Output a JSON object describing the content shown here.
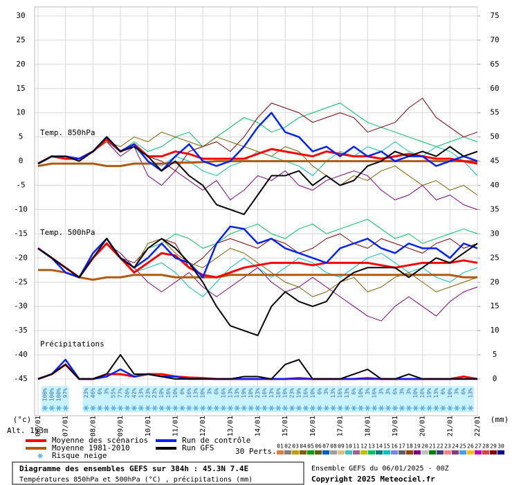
{
  "chart_data": {
    "type": "ensemble",
    "title": "Diagramme des ensembles GEFS sur 384h : 45.3N 7.4E",
    "subtitle": "Températures 850hPa et 500hPa (°C) , précipitations (mm)",
    "run_label": "Ensemble GEFS du 06/01/2025 - 00Z",
    "copyright": "Copyright 2025 Meteociel.fr",
    "altitude": "Alt. 153m",
    "y_unit": "(°c)",
    "y2_unit": "(mm)",
    "x": [
      0,
      12,
      24,
      36,
      48,
      60,
      72,
      84,
      96,
      108,
      120,
      132,
      144,
      156,
      168,
      180,
      192,
      204,
      216,
      228,
      240,
      252,
      264,
      276,
      288,
      300,
      312,
      324,
      336,
      348,
      360,
      372,
      384
    ],
    "xlim": [
      0,
      384
    ],
    "xticks": [
      {
        "value": 0,
        "label": "06/01"
      },
      {
        "value": 24,
        "label": "07/01"
      },
      {
        "value": 48,
        "label": "08/01"
      },
      {
        "value": 72,
        "label": "09/01"
      },
      {
        "value": 96,
        "label": "10/01"
      },
      {
        "value": 120,
        "label": "11/01"
      },
      {
        "value": 144,
        "label": "12/01"
      },
      {
        "value": 168,
        "label": "13/01"
      },
      {
        "value": 192,
        "label": "14/01"
      },
      {
        "value": 216,
        "label": "15/01"
      },
      {
        "value": 240,
        "label": "16/01"
      },
      {
        "value": 264,
        "label": "17/01"
      },
      {
        "value": 288,
        "label": "18/01"
      },
      {
        "value": 312,
        "label": "19/01"
      },
      {
        "value": 336,
        "label": "20/01"
      },
      {
        "value": 360,
        "label": "21/01"
      },
      {
        "value": 384,
        "label": "22/01"
      }
    ],
    "ylim": [
      -45,
      30
    ],
    "yticks": [
      -45,
      -40,
      -35,
      -30,
      -25,
      -20,
      -15,
      -10,
      -5,
      0,
      5,
      10,
      15,
      20,
      25,
      30
    ],
    "y2lim": [
      0,
      75
    ],
    "y2ticks": [
      0,
      5,
      10,
      15,
      20,
      25,
      30,
      35,
      40,
      45,
      50,
      55,
      60,
      65,
      70,
      75
    ],
    "grid": true,
    "lines": {
      "mean": {
        "name": "Moyenne des scénarios",
        "color": "#ff0000"
      },
      "clim": {
        "name": "Moyenne 1981-2010",
        "color": "#b05a10"
      },
      "control": {
        "name": "Run de contrôle",
        "color": "#0020ff"
      },
      "gfs": {
        "name": "Run GFS",
        "color": "#000000"
      }
    },
    "members": {
      "label": "30 Perts.",
      "ids": [
        "01",
        "02",
        "03",
        "04",
        "05",
        "06",
        "07",
        "08",
        "09",
        "10",
        "11",
        "12",
        "13",
        "14",
        "15",
        "16",
        "17",
        "18",
        "19",
        "20",
        "21",
        "22",
        "23",
        "24",
        "25",
        "26",
        "27",
        "28",
        "29",
        "30"
      ],
      "colors": [
        "#e08040",
        "#808080",
        "#c0a000",
        "#806000",
        "#00a000",
        "#606000",
        "#0060c0",
        "#a0a0a0",
        "#e0c080",
        "#40c0c0",
        "#a060a0",
        "#c0c000",
        "#00c060",
        "#008080",
        "#00c0c0",
        "#8080ff",
        "#606060",
        "#a04000",
        "#800080",
        "#c0c0c0",
        "#008000",
        "#404080",
        "#ff8080",
        "#804080",
        "#40a0ff",
        "#ffc000",
        "#c000c0",
        "#e04040",
        "#800000",
        "#0000a0"
      ]
    },
    "panels": [
      {
        "label": "Temp. 850hPa",
        "axis": "y",
        "members": {
          "13": [
            -0.5,
            1,
            1,
            0,
            2,
            5,
            2,
            4,
            2,
            3,
            5,
            6,
            3,
            5,
            7,
            9,
            8,
            6,
            7,
            9,
            10,
            11,
            12,
            10,
            8,
            7,
            6,
            5,
            4,
            3,
            4,
            5,
            4
          ],
          "19": [
            -0.5,
            1,
            1,
            0,
            2,
            4,
            1,
            3,
            -3,
            -5,
            -2,
            -4,
            -6,
            -4,
            -8,
            -6,
            -3,
            -4,
            -2,
            -5,
            -6,
            -4,
            -3,
            -2,
            -3,
            -6,
            -8,
            -7,
            -5,
            -8,
            -7,
            -9,
            -10
          ],
          "04": [
            -0.5,
            1,
            0.5,
            0.5,
            2,
            4,
            3,
            5,
            4,
            6,
            5,
            4,
            3,
            5,
            4,
            3,
            2,
            1,
            3,
            2,
            -1,
            -3,
            -5,
            -3,
            -4,
            -2,
            -1,
            -3,
            -5,
            -4,
            -6,
            -5,
            -7
          ],
          "29": [
            -0.5,
            1,
            1,
            0,
            2,
            5,
            2,
            3,
            1,
            0,
            -2,
            2,
            3,
            4,
            2,
            5,
            9,
            12,
            11,
            10,
            8,
            9,
            10,
            9,
            6,
            7,
            8,
            11,
            13,
            9,
            7,
            5,
            6
          ],
          "15": [
            -0.5,
            1,
            1,
            0,
            2,
            4,
            2,
            3,
            0,
            -1,
            1,
            0,
            -2,
            -3,
            -1,
            0,
            2,
            1,
            0,
            -1,
            -3,
            0,
            2,
            1,
            3,
            2,
            4,
            2,
            1,
            3,
            2,
            0,
            -3
          ]
        },
        "clim": [
          -1,
          -0.5,
          -0.5,
          -0.5,
          -0.5,
          -1,
          -1,
          -0.5,
          -0.5,
          -0.5,
          -0.3,
          -0.3,
          -0.2,
          0,
          0,
          0,
          0,
          0,
          0,
          0,
          0,
          0,
          0,
          0,
          0,
          0,
          0,
          0,
          0,
          0,
          0,
          0,
          0
        ],
        "mean": [
          -0.5,
          1,
          0.5,
          0.5,
          2,
          4.5,
          2,
          3.5,
          1,
          1,
          2,
          1.5,
          0.5,
          0.5,
          0.5,
          0.5,
          1.5,
          2.5,
          2,
          1.5,
          1,
          2,
          1.5,
          1,
          1,
          0.5,
          1,
          1.5,
          1,
          0.5,
          0.5,
          0,
          -0.5
        ],
        "control": [
          -0.5,
          1,
          1,
          0.5,
          2,
          5,
          2,
          3.5,
          0,
          -2,
          1,
          3.5,
          0,
          -1,
          0,
          3,
          7,
          10,
          6,
          5,
          2,
          3,
          1,
          3,
          1,
          2,
          0,
          1,
          1,
          -1,
          0,
          1,
          0
        ],
        "gfs": [
          -0.5,
          1,
          1,
          0,
          2,
          5,
          2,
          3,
          1,
          -2,
          0,
          -3,
          -5,
          -9,
          -10,
          -11,
          -7,
          -3,
          -3,
          -2,
          -5,
          -3,
          -5,
          -4,
          -1,
          0,
          2,
          1,
          2,
          1,
          3,
          1,
          2
        ]
      },
      {
        "label": "Temp. 500hPa",
        "axis": "y",
        "members": {
          "13": [
            -18,
            -20,
            -22,
            -24,
            -20,
            -17,
            -20,
            -22,
            -18,
            -17,
            -15,
            -16,
            -18,
            -17,
            -15,
            -14,
            -13,
            -15,
            -16,
            -14,
            -13,
            -15,
            -14,
            -13,
            -12,
            -14,
            -16,
            -15,
            -17,
            -16,
            -15,
            -14,
            -15
          ],
          "19": [
            -18,
            -20,
            -22,
            -24,
            -20,
            -17,
            -19,
            -22,
            -25,
            -27,
            -25,
            -23,
            -26,
            -28,
            -26,
            -24,
            -22,
            -25,
            -27,
            -26,
            -24,
            -26,
            -28,
            -30,
            -32,
            -33,
            -30,
            -28,
            -30,
            -32,
            -29,
            -27,
            -26
          ],
          "04": [
            -18,
            -20,
            -22,
            -24,
            -20,
            -17,
            -20,
            -22,
            -17,
            -16,
            -19,
            -21,
            -22,
            -20,
            -18,
            -19,
            -21,
            -23,
            -25,
            -26,
            -28,
            -27,
            -25,
            -24,
            -27,
            -26,
            -24,
            -23,
            -25,
            -27,
            -26,
            -25,
            -24
          ],
          "29": [
            -18,
            -20,
            -22,
            -24,
            -20,
            -17,
            -20,
            -21,
            -18,
            -16,
            -17,
            -22,
            -20,
            -17,
            -16,
            -17,
            -18,
            -16,
            -17,
            -19,
            -18,
            -16,
            -15,
            -17,
            -18,
            -16,
            -17,
            -18,
            -19,
            -17,
            -16,
            -18,
            -17
          ],
          "15": [
            -18,
            -20,
            -22,
            -24,
            -20,
            -17,
            -20,
            -23,
            -22,
            -21,
            -23,
            -26,
            -28,
            -25,
            -22,
            -20,
            -22,
            -24,
            -22,
            -20,
            -21,
            -23,
            -24,
            -22,
            -20,
            -19,
            -21,
            -23,
            -22,
            -24,
            -25,
            -23,
            -22
          ]
        },
        "clim": [
          -22.5,
          -22.5,
          -23,
          -24,
          -24.5,
          -24,
          -24,
          -23.5,
          -23.5,
          -23.5,
          -24,
          -24,
          -24,
          -24,
          -23.5,
          -23.5,
          -23.5,
          -23.5,
          -23.5,
          -23.5,
          -23.5,
          -23.5,
          -23.5,
          -23.5,
          -23.5,
          -23.5,
          -23.5,
          -23.5,
          -23.5,
          -23.5,
          -23.5,
          -24,
          -24
        ],
        "mean": [
          -18,
          -20,
          -22,
          -24,
          -20,
          -17,
          -20,
          -23,
          -21,
          -19,
          -19.5,
          -22,
          -23.5,
          -24,
          -23,
          -22,
          -21.5,
          -21,
          -21,
          -21,
          -21.5,
          -21,
          -21,
          -21,
          -21,
          -21.5,
          -22,
          -21.5,
          -21,
          -21,
          -21,
          -20.5,
          -21
        ],
        "control": [
          -18,
          -20,
          -23,
          -24,
          -19,
          -16,
          -20,
          -22,
          -20,
          -17,
          -20,
          -21,
          -24,
          -17,
          -13.5,
          -14,
          -17,
          -16,
          -18,
          -19,
          -20,
          -21,
          -18,
          -17,
          -16,
          -18,
          -19,
          -17,
          -18,
          -18,
          -20,
          -17,
          -18
        ],
        "gfs": [
          -18,
          -20,
          -22,
          -24,
          -20,
          -16,
          -20,
          -22,
          -18,
          -16,
          -18,
          -21,
          -25,
          -30,
          -34,
          -35,
          -36,
          -30,
          -27,
          -29,
          -30,
          -29,
          -25,
          -23,
          -22,
          -22,
          -22,
          -24,
          -22,
          -20,
          -21,
          -19,
          -17
        ]
      },
      {
        "label": "Précipitations",
        "axis": "y2",
        "mean": [
          0,
          1,
          3,
          0,
          0,
          1,
          1,
          0.5,
          1,
          1,
          0.5,
          0.3,
          0.2,
          0,
          0,
          0,
          0,
          0,
          0,
          0.2,
          0,
          0,
          0,
          0,
          0.2,
          0,
          0,
          0,
          0,
          0,
          0,
          0.5,
          0
        ],
        "control": [
          0,
          1,
          4,
          0,
          0,
          0.5,
          2,
          0.5,
          1,
          0.5,
          0.5,
          0,
          0,
          0,
          0,
          0,
          0,
          0,
          0,
          0,
          0,
          0,
          0,
          0,
          0,
          0,
          0,
          0,
          0,
          0,
          0,
          0,
          0
        ],
        "gfs": [
          0,
          1,
          3,
          0,
          0,
          1,
          5,
          1,
          1,
          0.5,
          0,
          0,
          0,
          0,
          0,
          0.5,
          0.5,
          0,
          3,
          4,
          0,
          0,
          0,
          1,
          2,
          0,
          0,
          1,
          0,
          0,
          0,
          0,
          0
        ]
      }
    ],
    "snow": {
      "name": "Risque neige",
      "x": [
        6,
        12,
        18,
        24,
        30,
        36,
        42,
        48,
        54,
        60,
        66,
        72,
        78,
        84,
        90,
        96,
        102,
        108,
        114,
        120,
        126,
        132,
        138,
        144,
        150,
        156,
        162,
        168,
        174,
        180,
        186,
        192,
        198,
        204,
        210,
        216,
        222,
        228,
        234,
        240,
        246,
        252,
        258,
        264,
        270,
        276,
        282,
        288,
        294,
        300,
        306,
        312,
        318,
        324,
        330,
        336,
        342,
        348,
        354,
        360,
        366,
        372,
        378
      ],
      "labels": [
        "100%",
        "100%",
        "100%",
        "97%",
        null,
        null,
        "23%",
        "46%",
        "6%",
        "3%",
        "55%",
        "77%",
        "26%",
        "42%",
        "13%",
        "23%",
        "23%",
        "19%",
        "16%",
        "10%",
        "6%",
        "16%",
        "13%",
        "10%",
        "3%",
        "6%",
        "16%",
        "13%",
        "13%",
        "19%",
        "10%",
        "23%",
        "16%",
        "13%",
        "16%",
        "10%",
        "23%",
        "19%",
        "16%",
        "10%",
        "6%",
        "3%",
        "13%",
        "16%",
        "13%",
        "6%",
        "10%",
        "3%",
        "16%",
        "3%",
        "3%",
        "6%",
        "3%",
        "3%",
        "10%",
        "16%",
        "19%",
        "13%",
        "6%",
        "10%",
        "3%",
        "6%",
        "13%"
      ]
    }
  }
}
